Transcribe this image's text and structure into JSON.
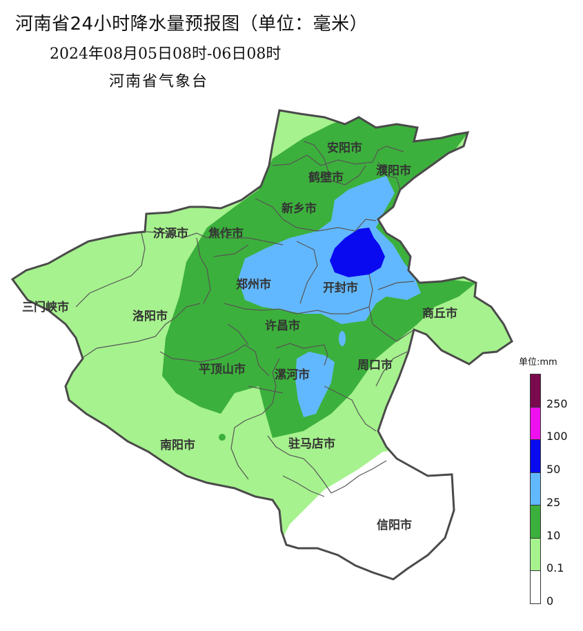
{
  "header": {
    "title": "河南省24小时降水量预报图（单位：毫米）",
    "period": "2024年08月05日08时-06日08时",
    "agency": "河南省气象台"
  },
  "legend": {
    "unit": "单位:mm",
    "levels": [
      {
        "label": "250",
        "color": "#7a0a4e"
      },
      {
        "label": "100",
        "color": "#ee10ee"
      },
      {
        "label": "50",
        "color": "#0a0af0"
      },
      {
        "label": "25",
        "color": "#62b8ff"
      },
      {
        "label": "10",
        "color": "#3cb03c"
      },
      {
        "label": "0.1",
        "color": "#a6f28e"
      },
      {
        "label": "0",
        "color": "#ffffff"
      }
    ]
  },
  "cities": {
    "anyang": "安阳市",
    "hebi": "鹤壁市",
    "puyang": "濮阳市",
    "xinxiang": "新乡市",
    "jiyuan": "济源市",
    "jiaozuo": "焦作市",
    "zhengzhou": "郑州市",
    "kaifeng": "开封市",
    "sanmenxia": "三门峡市",
    "luoyang": "洛阳市",
    "shangqiu": "商丘市",
    "xuchang": "许昌市",
    "pingdingshan": "平顶山市",
    "luohe": "漯河市",
    "zhoukou": "周口市",
    "nanyang": "南阳市",
    "zhumadian": "驻马店市",
    "xinyang": "信阳市"
  }
}
